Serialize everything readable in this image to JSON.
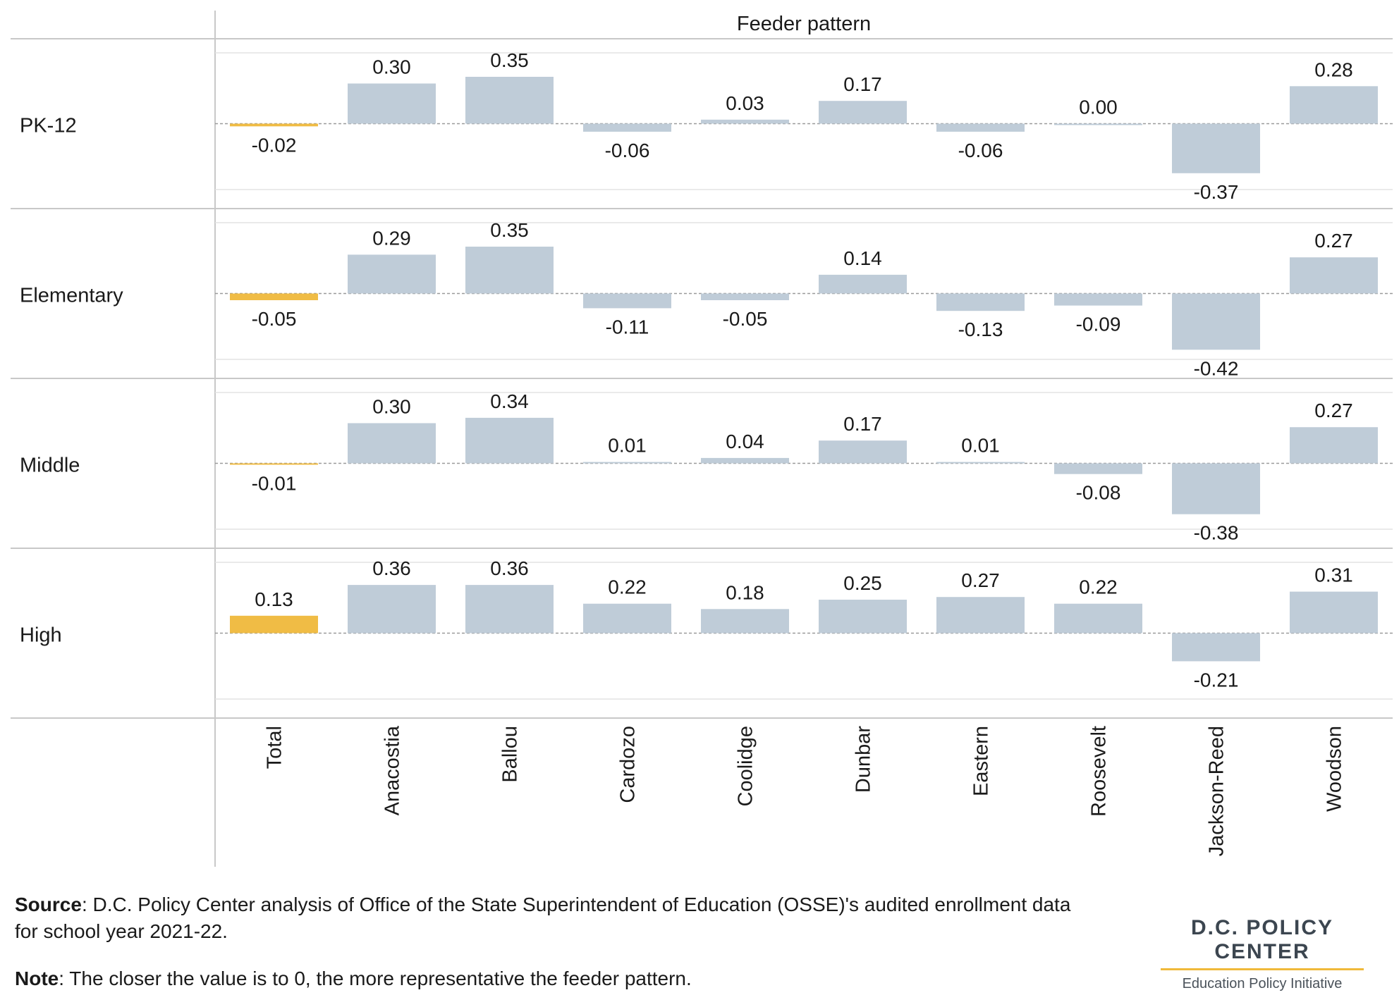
{
  "colors": {
    "highlight": "#f0bc45",
    "bar": "#bfccd8",
    "zero_line": "#9a9a9a",
    "grid": "#e3e3e3",
    "border": "#c8c8c8"
  },
  "chart_data": {
    "type": "bar",
    "title": "Feeder pattern",
    "categories": [
      "Total",
      "Anacostia",
      "Ballou",
      "Cardozo",
      "Coolidge",
      "Dunbar",
      "Eastern",
      "Roosevelt",
      "Jackson-Reed",
      "Woodson"
    ],
    "highlight_category": "Total",
    "series": [
      {
        "name": "PK-12",
        "values": [
          -0.02,
          0.3,
          0.35,
          -0.06,
          0.03,
          0.17,
          -0.06,
          0.0,
          -0.37,
          0.28
        ]
      },
      {
        "name": "Elementary",
        "values": [
          -0.05,
          0.29,
          0.35,
          -0.11,
          -0.05,
          0.14,
          -0.13,
          -0.09,
          -0.42,
          0.27
        ]
      },
      {
        "name": "Middle",
        "values": [
          -0.01,
          0.3,
          0.34,
          0.01,
          0.04,
          0.17,
          0.01,
          -0.08,
          -0.38,
          0.27
        ]
      },
      {
        "name": "High",
        "values": [
          0.13,
          0.36,
          0.36,
          0.22,
          0.18,
          0.25,
          0.27,
          0.22,
          -0.21,
          0.31
        ]
      }
    ],
    "ylim": [
      -0.5,
      0.5
    ],
    "grid": true,
    "data_labels": true
  },
  "footer": {
    "source_label": "Source",
    "source_text": ": D.C. Policy Center analysis of Office of the State Superintendent of Education (OSSE)'s audited enrollment data for school year 2021-22.",
    "note_label": "Note",
    "note_text": ": The closer the value is to 0, the more representative the feeder pattern."
  },
  "logo": {
    "main": "D.C. POLICY CENTER",
    "sub": "Education Policy Initiative"
  }
}
